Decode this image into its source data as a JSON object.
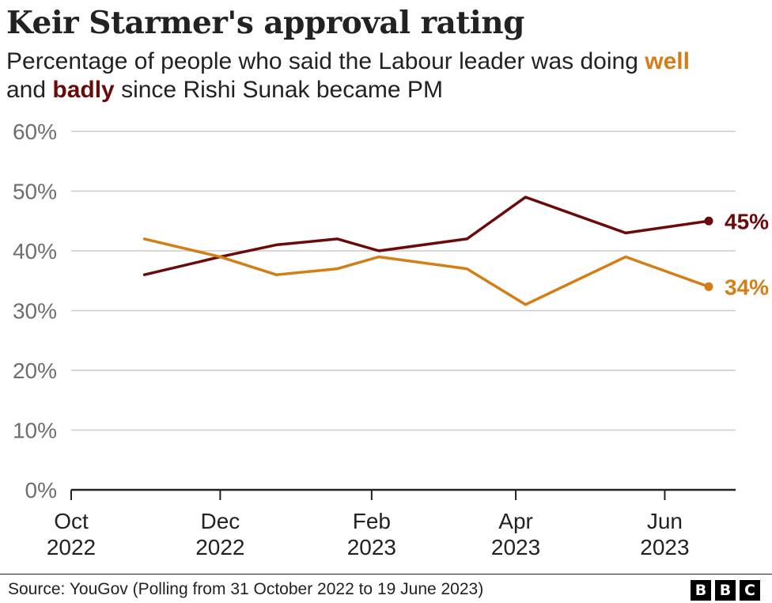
{
  "title": "Keir Starmer's approval rating",
  "subtitle": {
    "pre": "Percentage of people who said the Labour leader was doing ",
    "well": "well",
    "mid": " and ",
    "badly": "badly",
    "post": " since Rishi Sunak became PM"
  },
  "source": "Source: YouGov (Polling from 31 October 2022 to 19 June 2023)",
  "logo": [
    "B",
    "B",
    "C"
  ],
  "colors": {
    "well": "#d47e17",
    "badly": "#6b0a0a",
    "grid": "#cccccc",
    "axis": "#222222",
    "tick_text": "#6e6e6e"
  },
  "chart_data": {
    "type": "line",
    "y_ticks": [
      "0%",
      "10%",
      "20%",
      "30%",
      "40%",
      "50%",
      "60%"
    ],
    "ylim": [
      0,
      60
    ],
    "x_ticks": [
      {
        "month": "Oct",
        "year": "2022",
        "date": "2022-10-01"
      },
      {
        "month": "Dec",
        "year": "2022",
        "date": "2022-12-01"
      },
      {
        "month": "Feb",
        "year": "2023",
        "date": "2023-02-01"
      },
      {
        "month": "Apr",
        "year": "2023",
        "date": "2023-04-01"
      },
      {
        "month": "Jun",
        "year": "2023",
        "date": "2023-06-01"
      }
    ],
    "xlim": [
      "2022-10-01",
      "2023-06-30"
    ],
    "grid": true,
    "series": [
      {
        "name": "badly",
        "color": "#6b0a0a",
        "end_label": "45%",
        "points": [
          {
            "x": "2022-10-31",
            "y": 36
          },
          {
            "x": "2022-12-01",
            "y": 39
          },
          {
            "x": "2022-12-24",
            "y": 41
          },
          {
            "x": "2023-01-18",
            "y": 42
          },
          {
            "x": "2023-02-04",
            "y": 40
          },
          {
            "x": "2023-03-12",
            "y": 42
          },
          {
            "x": "2023-04-05",
            "y": 49
          },
          {
            "x": "2023-05-16",
            "y": 43
          },
          {
            "x": "2023-06-19",
            "y": 45
          }
        ]
      },
      {
        "name": "well",
        "color": "#d47e17",
        "end_label": "34%",
        "points": [
          {
            "x": "2022-10-31",
            "y": 42
          },
          {
            "x": "2022-12-01",
            "y": 39
          },
          {
            "x": "2022-12-24",
            "y": 36
          },
          {
            "x": "2023-01-18",
            "y": 37
          },
          {
            "x": "2023-02-04",
            "y": 39
          },
          {
            "x": "2023-03-12",
            "y": 37
          },
          {
            "x": "2023-04-05",
            "y": 31
          },
          {
            "x": "2023-05-16",
            "y": 39
          },
          {
            "x": "2023-06-19",
            "y": 34
          }
        ]
      }
    ]
  }
}
